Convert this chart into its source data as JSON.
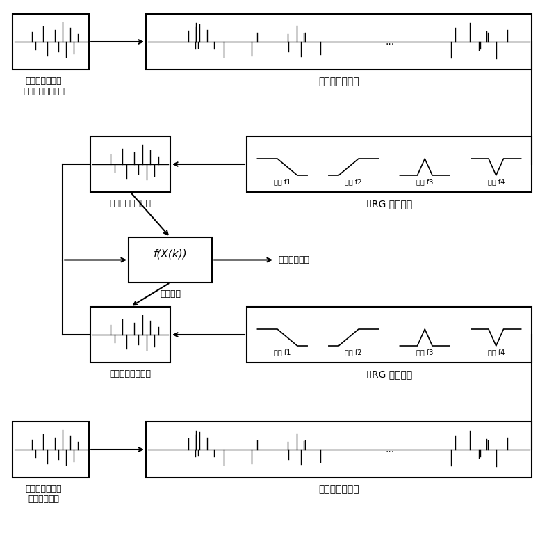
{
  "bg_color": "#ffffff",
  "line_color": "#000000",
  "title": "",
  "labels": {
    "current_sample": "基于对时同步的\n泄漏电流现场采样",
    "current_preprocess": "电流信号预处理",
    "voltage_sample": "基于对时同步的\n母线电压采样",
    "voltage_preprocess": "电压信号预处理",
    "narrow_band_current": "窄带工频信号滤波",
    "narrow_band_voltage": "窄带工频信号滤波",
    "iirg_current": "IIRG 滤波器组",
    "iirg_voltage": "IIRG 滤波器组",
    "phase_calc": "相量计算",
    "insulation_calc": "绝缘介损计算",
    "fx_label": "f(X(k))",
    "filter_labels": [
      "低通 f1",
      "高通 f2",
      "点通 f3",
      "点阻 f4"
    ]
  }
}
